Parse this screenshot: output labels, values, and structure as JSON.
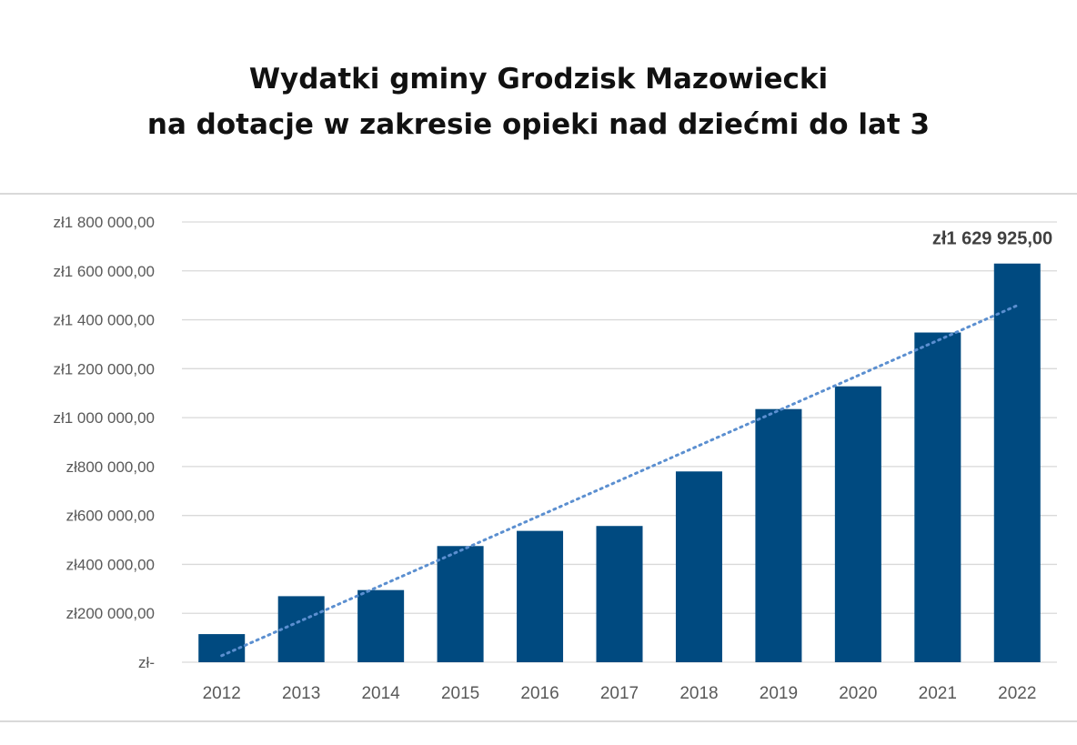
{
  "title_lines": [
    "Wydatki gminy Grodzisk Mazowiecki",
    "na dotacje w zakresie opieki nad dziećmi do lat 3"
  ],
  "chart_data": {
    "type": "bar",
    "title": "Wydatki gminy Grodzisk Mazowiecki na dotacje w zakresie opieki nad dziećmi do lat 3",
    "categories": [
      "2012",
      "2013",
      "2014",
      "2015",
      "2016",
      "2017",
      "2018",
      "2019",
      "2020",
      "2021",
      "2022"
    ],
    "values": [
      115000,
      270000,
      295000,
      475000,
      537000,
      557000,
      780000,
      1035000,
      1128000,
      1348000,
      1629925
    ],
    "ylim": [
      0,
      1800000
    ],
    "yticks": [
      0,
      200000,
      400000,
      600000,
      800000,
      1000000,
      1200000,
      1400000,
      1600000,
      1800000
    ],
    "ytick_labels": [
      "zł-",
      "zł200 000,00",
      "zł400 000,00",
      "zł600 000,00",
      "zł800 000,00",
      "zł1 000 000,00",
      "zł1 200 000,00",
      "zł1 400 000,00",
      "zł1 600 000,00",
      "zł1 800 000,00"
    ],
    "data_labels": [
      {
        "category": "2022",
        "text": "zł1 629 925,00"
      }
    ],
    "trendline": {
      "type": "linear",
      "style": "dotted"
    },
    "grid": true,
    "colors": {
      "bar": "#004a80",
      "trendline": "#5b8fd0",
      "grid": "#d9d9d9"
    }
  }
}
